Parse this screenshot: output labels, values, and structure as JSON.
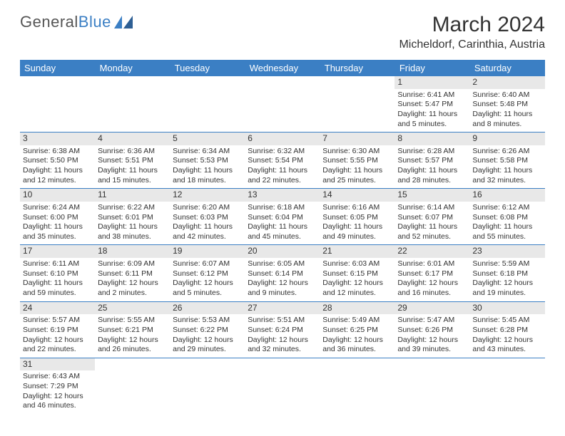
{
  "logo": {
    "text1": "General",
    "text2": "Blue"
  },
  "title": "March 2024",
  "location": "Micheldorf, Carinthia, Austria",
  "colors": {
    "header_bg": "#3b7fc4",
    "header_text": "#ffffff",
    "daynum_bg": "#e8e8e8",
    "border": "#3b7fc4",
    "text": "#333333",
    "logo_gray": "#555555",
    "logo_blue": "#3b7fc4"
  },
  "weekdays": [
    "Sunday",
    "Monday",
    "Tuesday",
    "Wednesday",
    "Thursday",
    "Friday",
    "Saturday"
  ],
  "weeks": [
    [
      null,
      null,
      null,
      null,
      null,
      {
        "n": "1",
        "sunrise": "6:41 AM",
        "sunset": "5:47 PM",
        "day_h": "11",
        "day_m": "5"
      },
      {
        "n": "2",
        "sunrise": "6:40 AM",
        "sunset": "5:48 PM",
        "day_h": "11",
        "day_m": "8"
      }
    ],
    [
      {
        "n": "3",
        "sunrise": "6:38 AM",
        "sunset": "5:50 PM",
        "day_h": "11",
        "day_m": "12"
      },
      {
        "n": "4",
        "sunrise": "6:36 AM",
        "sunset": "5:51 PM",
        "day_h": "11",
        "day_m": "15"
      },
      {
        "n": "5",
        "sunrise": "6:34 AM",
        "sunset": "5:53 PM",
        "day_h": "11",
        "day_m": "18"
      },
      {
        "n": "6",
        "sunrise": "6:32 AM",
        "sunset": "5:54 PM",
        "day_h": "11",
        "day_m": "22"
      },
      {
        "n": "7",
        "sunrise": "6:30 AM",
        "sunset": "5:55 PM",
        "day_h": "11",
        "day_m": "25"
      },
      {
        "n": "8",
        "sunrise": "6:28 AM",
        "sunset": "5:57 PM",
        "day_h": "11",
        "day_m": "28"
      },
      {
        "n": "9",
        "sunrise": "6:26 AM",
        "sunset": "5:58 PM",
        "day_h": "11",
        "day_m": "32"
      }
    ],
    [
      {
        "n": "10",
        "sunrise": "6:24 AM",
        "sunset": "6:00 PM",
        "day_h": "11",
        "day_m": "35"
      },
      {
        "n": "11",
        "sunrise": "6:22 AM",
        "sunset": "6:01 PM",
        "day_h": "11",
        "day_m": "38"
      },
      {
        "n": "12",
        "sunrise": "6:20 AM",
        "sunset": "6:03 PM",
        "day_h": "11",
        "day_m": "42"
      },
      {
        "n": "13",
        "sunrise": "6:18 AM",
        "sunset": "6:04 PM",
        "day_h": "11",
        "day_m": "45"
      },
      {
        "n": "14",
        "sunrise": "6:16 AM",
        "sunset": "6:05 PM",
        "day_h": "11",
        "day_m": "49"
      },
      {
        "n": "15",
        "sunrise": "6:14 AM",
        "sunset": "6:07 PM",
        "day_h": "11",
        "day_m": "52"
      },
      {
        "n": "16",
        "sunrise": "6:12 AM",
        "sunset": "6:08 PM",
        "day_h": "11",
        "day_m": "55"
      }
    ],
    [
      {
        "n": "17",
        "sunrise": "6:11 AM",
        "sunset": "6:10 PM",
        "day_h": "11",
        "day_m": "59"
      },
      {
        "n": "18",
        "sunrise": "6:09 AM",
        "sunset": "6:11 PM",
        "day_h": "12",
        "day_m": "2"
      },
      {
        "n": "19",
        "sunrise": "6:07 AM",
        "sunset": "6:12 PM",
        "day_h": "12",
        "day_m": "5"
      },
      {
        "n": "20",
        "sunrise": "6:05 AM",
        "sunset": "6:14 PM",
        "day_h": "12",
        "day_m": "9"
      },
      {
        "n": "21",
        "sunrise": "6:03 AM",
        "sunset": "6:15 PM",
        "day_h": "12",
        "day_m": "12"
      },
      {
        "n": "22",
        "sunrise": "6:01 AM",
        "sunset": "6:17 PM",
        "day_h": "12",
        "day_m": "16"
      },
      {
        "n": "23",
        "sunrise": "5:59 AM",
        "sunset": "6:18 PM",
        "day_h": "12",
        "day_m": "19"
      }
    ],
    [
      {
        "n": "24",
        "sunrise": "5:57 AM",
        "sunset": "6:19 PM",
        "day_h": "12",
        "day_m": "22"
      },
      {
        "n": "25",
        "sunrise": "5:55 AM",
        "sunset": "6:21 PM",
        "day_h": "12",
        "day_m": "26"
      },
      {
        "n": "26",
        "sunrise": "5:53 AM",
        "sunset": "6:22 PM",
        "day_h": "12",
        "day_m": "29"
      },
      {
        "n": "27",
        "sunrise": "5:51 AM",
        "sunset": "6:24 PM",
        "day_h": "12",
        "day_m": "32"
      },
      {
        "n": "28",
        "sunrise": "5:49 AM",
        "sunset": "6:25 PM",
        "day_h": "12",
        "day_m": "36"
      },
      {
        "n": "29",
        "sunrise": "5:47 AM",
        "sunset": "6:26 PM",
        "day_h": "12",
        "day_m": "39"
      },
      {
        "n": "30",
        "sunrise": "5:45 AM",
        "sunset": "6:28 PM",
        "day_h": "12",
        "day_m": "43"
      }
    ],
    [
      {
        "n": "31",
        "sunrise": "6:43 AM",
        "sunset": "7:29 PM",
        "day_h": "12",
        "day_m": "46"
      },
      null,
      null,
      null,
      null,
      null,
      null
    ]
  ],
  "labels": {
    "sunrise": "Sunrise:",
    "sunset": "Sunset:",
    "daylight": "Daylight:",
    "hours": "hours",
    "and": "and",
    "minutes": "minutes."
  }
}
